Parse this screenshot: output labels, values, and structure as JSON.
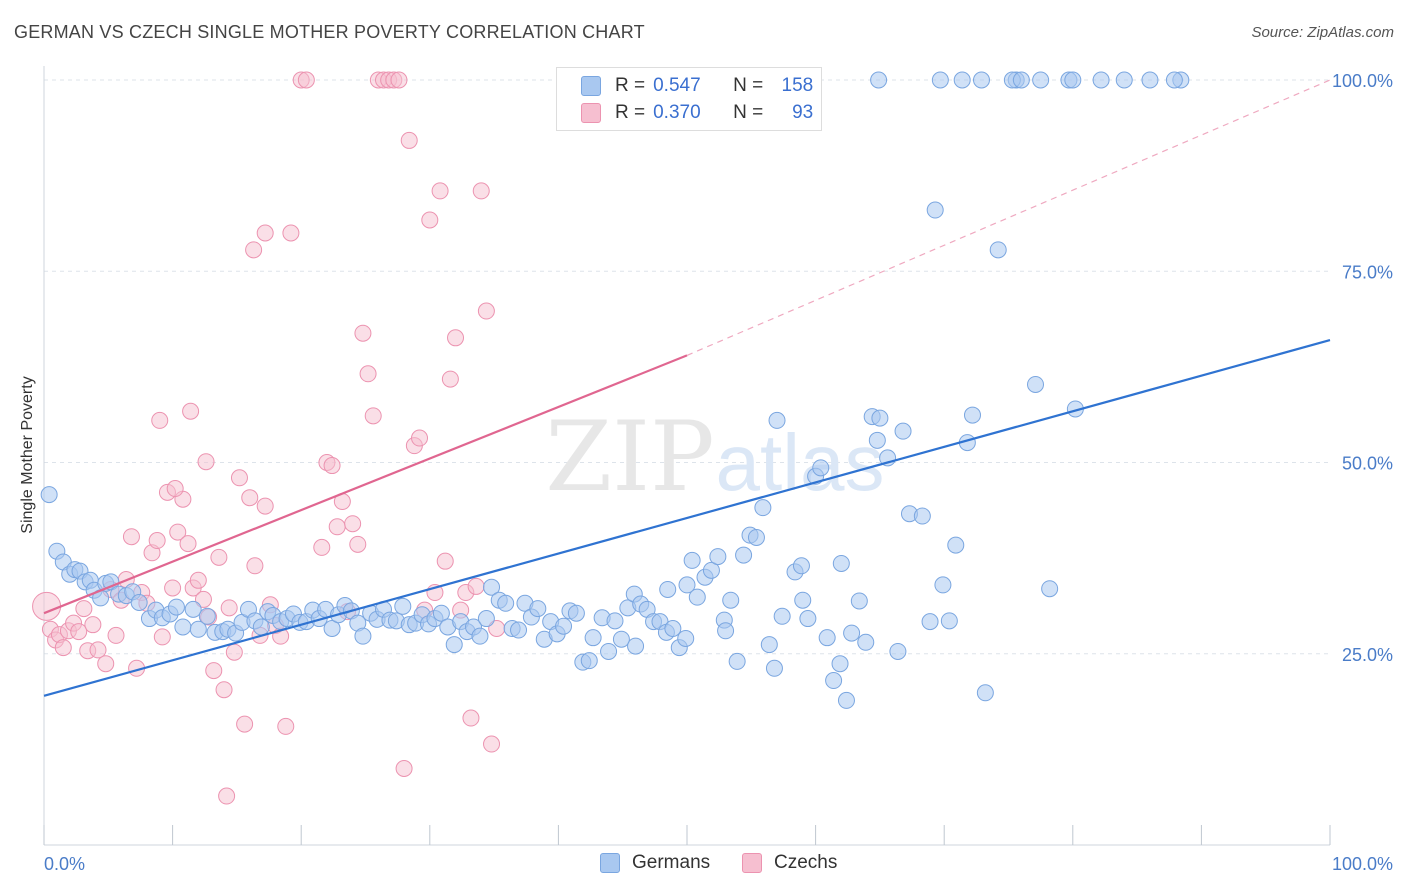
{
  "title": "GERMAN VS CZECH SINGLE MOTHER POVERTY CORRELATION CHART",
  "source": "Source: ZipAtlas.com",
  "watermark": {
    "zip": "ZIP",
    "atlas": "atlas"
  },
  "colors": {
    "germans_fill": "#a9c8f0",
    "germans_stroke": "#7aa6e0",
    "germans_line": "#2f73d1",
    "czechs_fill": "#f6bfd0",
    "czechs_stroke": "#ec93b0",
    "czechs_line": "#e06690",
    "grid": "#dde3ea",
    "axis_text": "#4a7cc8"
  },
  "legend": {
    "rows": [
      {
        "r_label": "R =",
        "r_value": "0.547",
        "n_label": "N =",
        "n_value": "158"
      },
      {
        "r_label": "R =",
        "r_value": "0.370",
        "n_label": "N =",
        "n_value": "93"
      }
    ]
  },
  "bottom_legend": {
    "germans": "Germans",
    "czechs": "Czechs"
  },
  "chart_data": {
    "type": "scatter",
    "title": "GERMAN VS CZECH SINGLE MOTHER POVERTY CORRELATION CHART",
    "xlabel": "",
    "ylabel": "Single Mother Poverty",
    "xlim": [
      0,
      100
    ],
    "ylim": [
      0,
      102
    ],
    "x_tick_labels": [
      "0.0%",
      "100.0%"
    ],
    "y_ticks": [
      25,
      50,
      75,
      100
    ],
    "y_tick_labels": [
      "25.0%",
      "50.0%",
      "75.0%",
      "100.0%"
    ],
    "grid": true,
    "legend_position": "top-center",
    "series": [
      {
        "name": "Germans",
        "r": 0.547,
        "n": 158,
        "trend": {
          "x0": 0,
          "y0": 19.5,
          "x1": 100,
          "y1": 66
        },
        "points": [
          [
            0.4,
            45.8
          ],
          [
            1.0,
            38.4
          ],
          [
            1.5,
            37.0
          ],
          [
            2.0,
            35.4
          ],
          [
            2.4,
            36.0
          ],
          [
            2.8,
            35.8
          ],
          [
            3.2,
            34.4
          ],
          [
            3.6,
            34.6
          ],
          [
            3.9,
            33.3
          ],
          [
            4.4,
            32.3
          ],
          [
            4.8,
            34.2
          ],
          [
            5.2,
            34.4
          ],
          [
            5.8,
            32.8
          ],
          [
            6.4,
            32.6
          ],
          [
            6.9,
            33.1
          ],
          [
            7.4,
            31.7
          ],
          [
            8.2,
            29.6
          ],
          [
            8.7,
            30.7
          ],
          [
            9.2,
            29.7
          ],
          [
            9.8,
            30.2
          ],
          [
            10.3,
            31.1
          ],
          [
            10.8,
            28.5
          ],
          [
            11.6,
            30.8
          ],
          [
            12.0,
            28.2
          ],
          [
            12.7,
            29.9
          ],
          [
            13.3,
            27.8
          ],
          [
            13.9,
            27.9
          ],
          [
            14.3,
            28.2
          ],
          [
            14.9,
            27.7
          ],
          [
            15.4,
            29.1
          ],
          [
            15.9,
            30.8
          ],
          [
            16.4,
            29.3
          ],
          [
            16.9,
            28.5
          ],
          [
            17.4,
            30.5
          ],
          [
            17.8,
            30.0
          ],
          [
            18.4,
            29.2
          ],
          [
            18.9,
            29.6
          ],
          [
            19.4,
            30.2
          ],
          [
            19.9,
            29.1
          ],
          [
            20.4,
            29.2
          ],
          [
            20.9,
            30.7
          ],
          [
            21.4,
            29.6
          ],
          [
            21.9,
            30.8
          ],
          [
            22.4,
            28.3
          ],
          [
            22.9,
            30.1
          ],
          [
            23.4,
            31.3
          ],
          [
            23.9,
            30.6
          ],
          [
            24.4,
            29.0
          ],
          [
            24.8,
            27.3
          ],
          [
            25.4,
            30.3
          ],
          [
            25.9,
            29.5
          ],
          [
            26.4,
            30.8
          ],
          [
            26.9,
            29.4
          ],
          [
            27.4,
            29.3
          ],
          [
            27.9,
            31.2
          ],
          [
            28.4,
            28.8
          ],
          [
            28.9,
            29.0
          ],
          [
            29.4,
            30.1
          ],
          [
            29.9,
            28.9
          ],
          [
            30.4,
            29.6
          ],
          [
            30.9,
            30.3
          ],
          [
            31.4,
            28.5
          ],
          [
            31.9,
            26.2
          ],
          [
            32.4,
            29.2
          ],
          [
            32.9,
            27.9
          ],
          [
            33.4,
            28.5
          ],
          [
            33.9,
            27.3
          ],
          [
            34.4,
            29.6
          ],
          [
            34.8,
            33.7
          ],
          [
            35.4,
            32.0
          ],
          [
            35.9,
            31.6
          ],
          [
            36.4,
            28.3
          ],
          [
            36.9,
            28.1
          ],
          [
            37.4,
            31.6
          ],
          [
            37.9,
            29.8
          ],
          [
            38.4,
            30.9
          ],
          [
            38.9,
            26.9
          ],
          [
            39.4,
            29.2
          ],
          [
            39.9,
            27.6
          ],
          [
            40.4,
            28.6
          ],
          [
            40.9,
            30.6
          ],
          [
            41.4,
            30.3
          ],
          [
            41.9,
            23.9
          ],
          [
            42.4,
            24.1
          ],
          [
            42.7,
            27.1
          ],
          [
            43.4,
            29.7
          ],
          [
            43.9,
            25.3
          ],
          [
            44.4,
            29.3
          ],
          [
            44.9,
            26.9
          ],
          [
            45.4,
            31.0
          ],
          [
            45.9,
            32.8
          ],
          [
            46.4,
            31.5
          ],
          [
            46.9,
            30.8
          ],
          [
            47.4,
            29.2
          ],
          [
            47.9,
            29.2
          ],
          [
            48.4,
            27.8
          ],
          [
            48.9,
            28.3
          ],
          [
            49.4,
            25.8
          ],
          [
            49.9,
            27.0
          ],
          [
            50.4,
            37.2
          ],
          [
            50.8,
            32.4
          ],
          [
            51.4,
            35.0
          ],
          [
            51.9,
            35.9
          ],
          [
            52.4,
            37.7
          ],
          [
            52.9,
            29.4
          ],
          [
            53.4,
            32.0
          ],
          [
            53.9,
            24.0
          ],
          [
            54.4,
            37.9
          ],
          [
            54.9,
            40.5
          ],
          [
            55.4,
            40.2
          ],
          [
            55.9,
            44.1
          ],
          [
            56.4,
            26.2
          ],
          [
            56.8,
            23.1
          ],
          [
            57.4,
            29.9
          ],
          [
            58.4,
            35.7
          ],
          [
            58.9,
            36.5
          ],
          [
            59.4,
            29.6
          ],
          [
            60.0,
            48.2
          ],
          [
            60.4,
            49.3
          ],
          [
            60.9,
            27.1
          ],
          [
            61.4,
            21.5
          ],
          [
            61.9,
            23.7
          ],
          [
            62.4,
            18.9
          ],
          [
            62.8,
            27.7
          ],
          [
            63.4,
            31.9
          ],
          [
            63.9,
            26.5
          ],
          [
            64.4,
            56.0
          ],
          [
            64.8,
            52.9
          ],
          [
            65.6,
            50.6
          ],
          [
            66.4,
            25.3
          ],
          [
            66.8,
            54.1
          ],
          [
            67.3,
            43.3
          ],
          [
            68.3,
            43.0
          ],
          [
            68.9,
            29.2
          ],
          [
            69.3,
            83.0
          ],
          [
            69.9,
            34.0
          ],
          [
            70.4,
            29.3
          ],
          [
            70.9,
            39.2
          ],
          [
            71.8,
            52.6
          ],
          [
            72.2,
            56.2
          ],
          [
            73.2,
            19.9
          ],
          [
            74.2,
            77.8
          ],
          [
            75.6,
            100
          ],
          [
            77.1,
            60.2
          ],
          [
            78.2,
            33.5
          ],
          [
            80.2,
            57.0
          ],
          [
            65.0,
            55.8
          ],
          [
            57.0,
            55.5
          ],
          [
            64.9,
            100
          ],
          [
            69.7,
            100
          ],
          [
            71.4,
            100
          ],
          [
            72.9,
            100
          ],
          [
            75.3,
            100
          ],
          [
            77.5,
            100
          ],
          [
            79.7,
            100
          ],
          [
            80.0,
            100
          ],
          [
            82.2,
            100
          ],
          [
            84.0,
            100
          ],
          [
            88.4,
            100
          ],
          [
            87.9,
            100
          ],
          [
            86.0,
            100
          ],
          [
            76.0,
            100
          ],
          [
            62.0,
            36.8
          ],
          [
            50.0,
            34.0
          ],
          [
            59.0,
            32.0
          ],
          [
            48.5,
            33.4
          ],
          [
            53.0,
            28.0
          ],
          [
            46.0,
            26.0
          ]
        ]
      },
      {
        "name": "Czechs",
        "r": 0.37,
        "n": 93,
        "trend": {
          "x0": 0,
          "y0": 30.3,
          "x1": 50,
          "y1": 64,
          "dashed_to": {
            "x": 100,
            "y": 100
          }
        },
        "points": [
          [
            0.2,
            31.2
          ],
          [
            0.5,
            28.2
          ],
          [
            0.9,
            26.8
          ],
          [
            1.2,
            27.5
          ],
          [
            1.5,
            25.8
          ],
          [
            1.9,
            28.0
          ],
          [
            2.3,
            29.0
          ],
          [
            2.7,
            27.9
          ],
          [
            3.1,
            30.9
          ],
          [
            3.4,
            25.4
          ],
          [
            3.8,
            28.8
          ],
          [
            4.2,
            25.5
          ],
          [
            4.8,
            23.7
          ],
          [
            5.2,
            33.4
          ],
          [
            5.6,
            27.4
          ],
          [
            6.0,
            32.0
          ],
          [
            6.4,
            34.7
          ],
          [
            6.8,
            40.3
          ],
          [
            7.2,
            23.1
          ],
          [
            7.6,
            33.0
          ],
          [
            8.0,
            31.6
          ],
          [
            8.4,
            38.2
          ],
          [
            8.8,
            39.8
          ],
          [
            9.2,
            27.2
          ],
          [
            9.6,
            46.1
          ],
          [
            10.0,
            33.6
          ],
          [
            10.4,
            40.9
          ],
          [
            10.8,
            45.2
          ],
          [
            11.2,
            39.4
          ],
          [
            11.6,
            33.6
          ],
          [
            12.0,
            34.6
          ],
          [
            12.4,
            32.1
          ],
          [
            12.8,
            29.8
          ],
          [
            13.2,
            22.8
          ],
          [
            13.6,
            37.6
          ],
          [
            14.0,
            20.3
          ],
          [
            14.4,
            31.0
          ],
          [
            14.8,
            25.2
          ],
          [
            15.2,
            48.0
          ],
          [
            15.6,
            15.8
          ],
          [
            16.0,
            45.4
          ],
          [
            16.4,
            36.5
          ],
          [
            16.8,
            27.4
          ],
          [
            17.2,
            44.3
          ],
          [
            17.6,
            31.4
          ],
          [
            18.0,
            28.7
          ],
          [
            18.4,
            27.3
          ],
          [
            18.8,
            15.5
          ],
          [
            19.2,
            80.0
          ],
          [
            20.0,
            100
          ],
          [
            20.4,
            100
          ],
          [
            21.6,
            38.9
          ],
          [
            22.0,
            50.0
          ],
          [
            22.4,
            49.6
          ],
          [
            22.8,
            41.6
          ],
          [
            23.2,
            44.9
          ],
          [
            23.6,
            30.5
          ],
          [
            24.0,
            42.0
          ],
          [
            24.4,
            39.3
          ],
          [
            24.8,
            66.9
          ],
          [
            25.2,
            61.6
          ],
          [
            25.6,
            56.1
          ],
          [
            26.0,
            100
          ],
          [
            26.4,
            100
          ],
          [
            26.8,
            100
          ],
          [
            27.2,
            100
          ],
          [
            27.6,
            100
          ],
          [
            28.0,
            10.0
          ],
          [
            28.4,
            92.1
          ],
          [
            28.8,
            52.2
          ],
          [
            29.2,
            53.2
          ],
          [
            29.6,
            30.7
          ],
          [
            30.0,
            81.7
          ],
          [
            30.4,
            33.0
          ],
          [
            30.8,
            85.5
          ],
          [
            31.2,
            37.1
          ],
          [
            31.6,
            60.9
          ],
          [
            32.0,
            66.3
          ],
          [
            32.4,
            30.7
          ],
          [
            32.8,
            33.0
          ],
          [
            33.2,
            16.6
          ],
          [
            33.6,
            33.8
          ],
          [
            34.0,
            85.5
          ],
          [
            34.4,
            69.8
          ],
          [
            34.8,
            13.2
          ],
          [
            35.2,
            28.3
          ],
          [
            11.4,
            56.7
          ],
          [
            9.0,
            55.5
          ],
          [
            12.6,
            50.1
          ],
          [
            14.2,
            6.4
          ],
          [
            16.3,
            77.8
          ],
          [
            17.2,
            80.0
          ],
          [
            10.2,
            46.6
          ]
        ]
      }
    ]
  }
}
